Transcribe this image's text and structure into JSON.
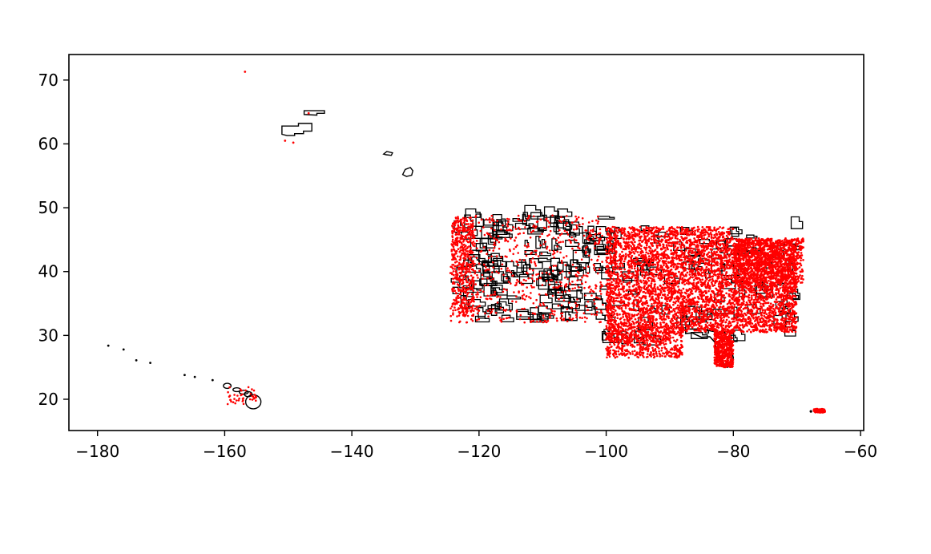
{
  "chart_data": {
    "type": "scatter",
    "title": "",
    "xlabel": "",
    "ylabel": "",
    "xlim": [
      -184.5,
      -59.5
    ],
    "ylim": [
      15.1,
      74.0
    ],
    "x_ticks": [
      -180,
      -160,
      -140,
      -120,
      -100,
      -80,
      -60
    ],
    "x_tick_labels": [
      "−180",
      "−160",
      "−140",
      "−120",
      "−100",
      "−80",
      "−60"
    ],
    "y_ticks": [
      20,
      30,
      40,
      50,
      60,
      70
    ],
    "y_tick_labels": [
      "20",
      "30",
      "40",
      "50",
      "60",
      "70"
    ],
    "grid": false,
    "legend": "none",
    "colors": {
      "boundary": "#000000",
      "points": "#ff0000",
      "background": "#ffffff"
    },
    "boundary_regions": [
      {
        "region": "alaska-north",
        "lon": [
          -147.5,
          -144.3
        ],
        "lat": [
          64.5,
          65.2
        ]
      },
      {
        "region": "alaska-central",
        "lon": [
          -151.0,
          -146.2
        ],
        "lat": [
          61.4,
          63.6
        ]
      },
      {
        "region": "southeast-alaska",
        "lon": [
          -135.0,
          -133.5
        ],
        "lat": [
          58.2,
          58.8
        ]
      },
      {
        "region": "southeast-alaska-2",
        "lon": [
          -132.0,
          -130.5
        ],
        "lat": [
          55.0,
          56.3
        ]
      },
      {
        "region": "contiguous-us-west",
        "lon": [
          -124.5,
          -100.0
        ],
        "lat": [
          31.5,
          49.0
        ]
      },
      {
        "region": "contiguous-us-east",
        "lon": [
          -100.0,
          -67.0
        ],
        "lat": [
          25.0,
          47.5
        ]
      },
      {
        "region": "florida",
        "lon": [
          -83.0,
          -80.0
        ],
        "lat": [
          24.5,
          31.0
        ]
      },
      {
        "region": "hawaii",
        "lon": [
          -160.5,
          -154.8
        ],
        "lat": [
          18.9,
          22.3
        ]
      },
      {
        "region": "puerto-rico",
        "lon": [
          -67.3,
          -65.6
        ],
        "lat": [
          17.9,
          18.5
        ]
      }
    ],
    "point_series": [
      {
        "region": "alaska",
        "lon": [
          -156.8,
          -150.5,
          -149.2,
          -146.8
        ],
        "lat": [
          71.3,
          60.5,
          60.2,
          64.8
        ]
      },
      {
        "region": "northwest-hawaiian-islands",
        "lon": [
          -178.3,
          -175.9,
          -173.9,
          -171.7,
          -166.3,
          -164.7,
          -161.9
        ],
        "lat": [
          28.4,
          27.8,
          26.1,
          25.7,
          23.8,
          23.5,
          23.0
        ]
      }
    ]
  }
}
